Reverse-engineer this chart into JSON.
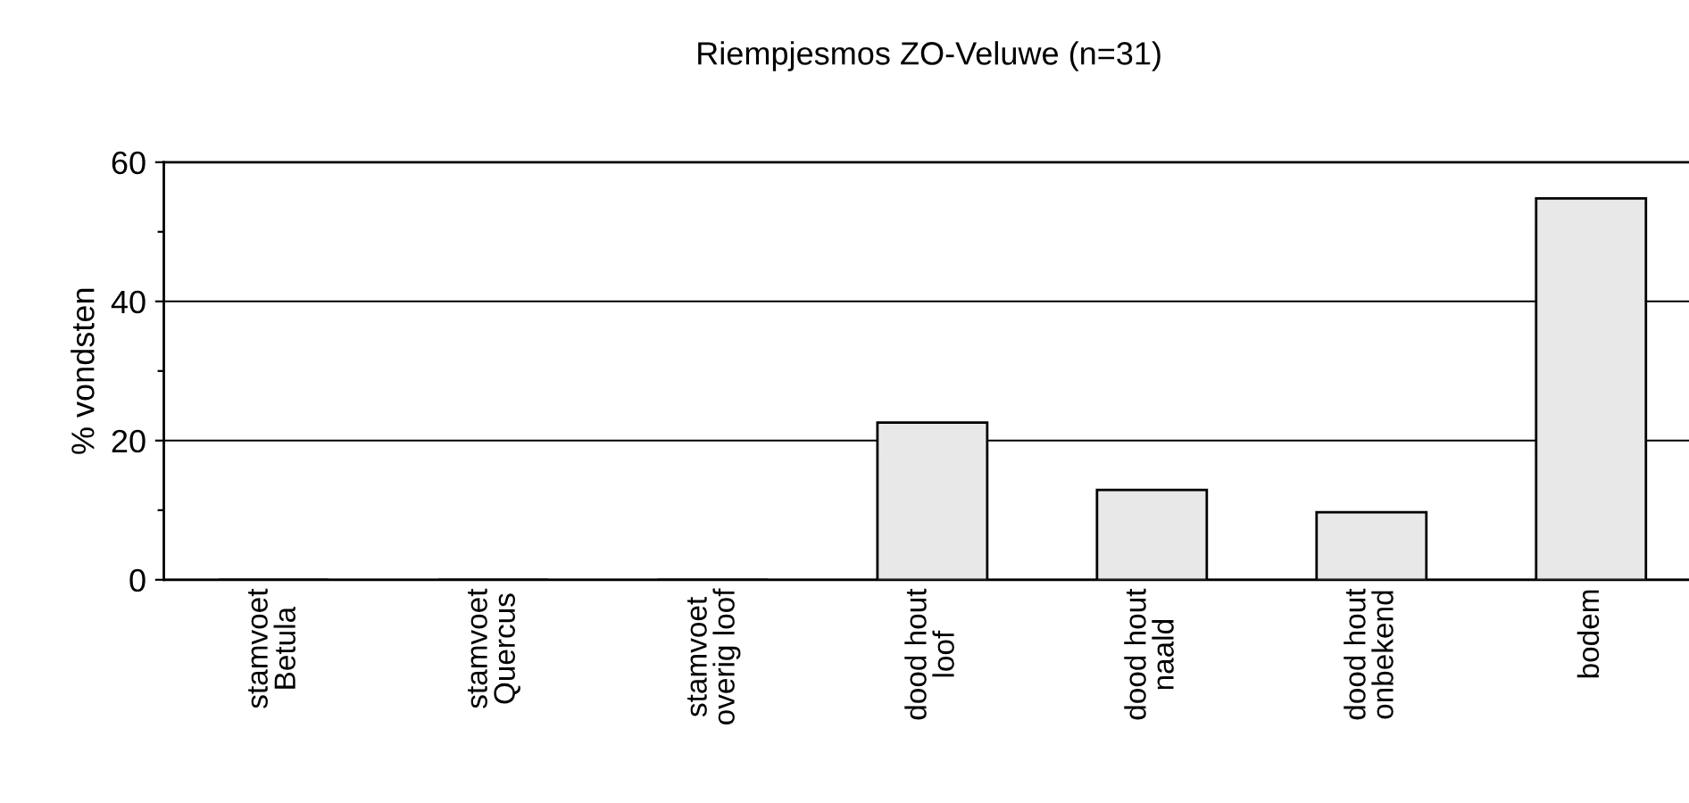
{
  "chart_data": {
    "type": "bar",
    "title": "Riempjesmos ZO-Veluwe (n=31)",
    "ylabel": "% vondsten",
    "categories": [
      "stamvoet\nBetula",
      "stamvoet\nQuercus",
      "stamvoet\noverig loof",
      "dood hout\nloof",
      "dood hout\nnaald",
      "dood hout\nonbekend",
      "bodem"
    ],
    "values": [
      0,
      0,
      0,
      22.6,
      12.9,
      9.7,
      54.8
    ],
    "color": "#e8e8e8",
    "ylim": [
      0,
      60
    ],
    "yticks": [
      0,
      {
        "value": 10,
        "label": null
      },
      20,
      {
        "value": 30,
        "label": null
      },
      40,
      {
        "value": 50,
        "label": null
      },
      60
    ],
    "grid": "y",
    "legend": false
  }
}
